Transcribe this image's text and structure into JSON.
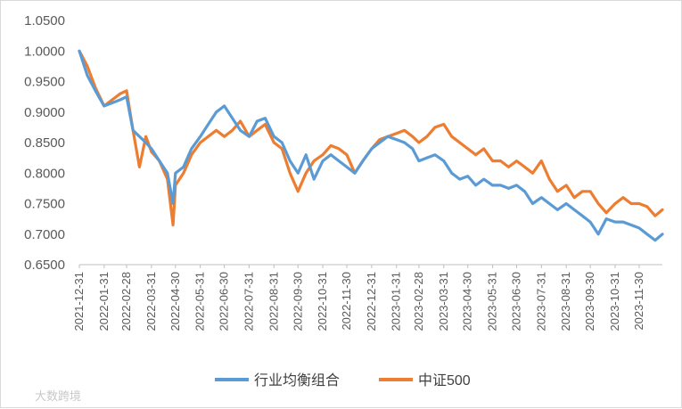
{
  "chart_data": {
    "type": "line",
    "title": "",
    "xlabel": "",
    "ylabel": "",
    "ylim": [
      0.65,
      1.05
    ],
    "y_ticks": [
      "1.0500",
      "1.0000",
      "0.9500",
      "0.9000",
      "0.8500",
      "0.8000",
      "0.7500",
      "0.7000",
      "0.6500"
    ],
    "y_tick_values": [
      1.05,
      1.0,
      0.95,
      0.9,
      0.85,
      0.8,
      0.75,
      0.7,
      0.65
    ],
    "x_ticks": [
      "2021-12-31",
      "2022-01-31",
      "2022-02-28",
      "2022-03-31",
      "2022-04-30",
      "2022-05-31",
      "2022-06-30",
      "2022-07-31",
      "2022-08-31",
      "2022-09-30",
      "2022-10-31",
      "2022-11-30",
      "2022-12-31",
      "2023-01-31",
      "2023-02-28",
      "2023-03-31",
      "2023-04-30",
      "2023-05-31",
      "2023-06-30",
      "2023-07-31",
      "2023-08-31",
      "2023-09-30",
      "2023-10-31",
      "2023-11-30"
    ],
    "x_range": [
      "2021-12-31",
      "2023-12-29"
    ],
    "grid": false,
    "legend_position": "bottom",
    "series": [
      {
        "name": "行业均衡组合",
        "color": "#5B9BD5",
        "x": [
          "2021-12-31",
          "2022-01-10",
          "2022-01-20",
          "2022-01-31",
          "2022-02-10",
          "2022-02-20",
          "2022-02-28",
          "2022-03-08",
          "2022-03-16",
          "2022-03-24",
          "2022-03-31",
          "2022-04-10",
          "2022-04-20",
          "2022-04-27",
          "2022-04-30",
          "2022-05-10",
          "2022-05-20",
          "2022-05-31",
          "2022-06-10",
          "2022-06-20",
          "2022-06-30",
          "2022-07-10",
          "2022-07-20",
          "2022-07-31",
          "2022-08-10",
          "2022-08-20",
          "2022-08-31",
          "2022-09-10",
          "2022-09-20",
          "2022-09-30",
          "2022-10-10",
          "2022-10-20",
          "2022-10-31",
          "2022-11-10",
          "2022-11-20",
          "2022-11-30",
          "2022-12-10",
          "2022-12-20",
          "2022-12-31",
          "2023-01-10",
          "2023-01-20",
          "2023-01-31",
          "2023-02-10",
          "2023-02-20",
          "2023-02-28",
          "2023-03-10",
          "2023-03-20",
          "2023-03-31",
          "2023-04-10",
          "2023-04-20",
          "2023-04-30",
          "2023-05-10",
          "2023-05-20",
          "2023-05-31",
          "2023-06-10",
          "2023-06-20",
          "2023-06-30",
          "2023-07-10",
          "2023-07-20",
          "2023-07-31",
          "2023-08-10",
          "2023-08-20",
          "2023-08-31",
          "2023-09-10",
          "2023-09-20",
          "2023-09-30",
          "2023-10-10",
          "2023-10-20",
          "2023-10-31",
          "2023-11-10",
          "2023-11-20",
          "2023-11-30",
          "2023-12-10",
          "2023-12-20",
          "2023-12-29"
        ],
        "values": [
          1.0,
          0.96,
          0.935,
          0.91,
          0.915,
          0.92,
          0.925,
          0.87,
          0.86,
          0.85,
          0.84,
          0.82,
          0.8,
          0.75,
          0.8,
          0.81,
          0.84,
          0.86,
          0.88,
          0.9,
          0.91,
          0.89,
          0.87,
          0.86,
          0.885,
          0.89,
          0.86,
          0.85,
          0.82,
          0.8,
          0.83,
          0.79,
          0.82,
          0.83,
          0.82,
          0.81,
          0.8,
          0.82,
          0.84,
          0.85,
          0.86,
          0.855,
          0.85,
          0.84,
          0.82,
          0.825,
          0.83,
          0.82,
          0.8,
          0.79,
          0.795,
          0.78,
          0.79,
          0.78,
          0.78,
          0.775,
          0.78,
          0.77,
          0.75,
          0.76,
          0.75,
          0.74,
          0.75,
          0.74,
          0.73,
          0.72,
          0.7,
          0.725,
          0.72,
          0.72,
          0.715,
          0.71,
          0.7,
          0.69,
          0.7
        ]
      },
      {
        "name": "中证500",
        "color": "#ED7D31",
        "x": [
          "2021-12-31",
          "2022-01-10",
          "2022-01-20",
          "2022-01-31",
          "2022-02-10",
          "2022-02-20",
          "2022-02-28",
          "2022-03-08",
          "2022-03-16",
          "2022-03-24",
          "2022-03-31",
          "2022-04-10",
          "2022-04-20",
          "2022-04-27",
          "2022-04-30",
          "2022-05-10",
          "2022-05-20",
          "2022-05-31",
          "2022-06-10",
          "2022-06-20",
          "2022-06-30",
          "2022-07-10",
          "2022-07-20",
          "2022-07-31",
          "2022-08-10",
          "2022-08-20",
          "2022-08-31",
          "2022-09-10",
          "2022-09-20",
          "2022-09-30",
          "2022-10-10",
          "2022-10-20",
          "2022-10-31",
          "2022-11-10",
          "2022-11-20",
          "2022-11-30",
          "2022-12-10",
          "2022-12-20",
          "2022-12-31",
          "2023-01-10",
          "2023-01-20",
          "2023-01-31",
          "2023-02-10",
          "2023-02-20",
          "2023-02-28",
          "2023-03-10",
          "2023-03-20",
          "2023-03-31",
          "2023-04-10",
          "2023-04-20",
          "2023-04-30",
          "2023-05-10",
          "2023-05-20",
          "2023-05-31",
          "2023-06-10",
          "2023-06-20",
          "2023-06-30",
          "2023-07-10",
          "2023-07-20",
          "2023-07-31",
          "2023-08-10",
          "2023-08-20",
          "2023-08-31",
          "2023-09-10",
          "2023-09-20",
          "2023-09-30",
          "2023-10-10",
          "2023-10-20",
          "2023-10-31",
          "2023-11-10",
          "2023-11-20",
          "2023-11-30",
          "2023-12-10",
          "2023-12-20",
          "2023-12-29"
        ],
        "values": [
          1.0,
          0.975,
          0.94,
          0.91,
          0.92,
          0.93,
          0.935,
          0.87,
          0.81,
          0.86,
          0.835,
          0.82,
          0.79,
          0.715,
          0.78,
          0.8,
          0.83,
          0.85,
          0.86,
          0.87,
          0.86,
          0.87,
          0.885,
          0.86,
          0.87,
          0.88,
          0.85,
          0.84,
          0.8,
          0.77,
          0.8,
          0.82,
          0.83,
          0.845,
          0.84,
          0.83,
          0.8,
          0.82,
          0.84,
          0.855,
          0.86,
          0.865,
          0.87,
          0.86,
          0.85,
          0.86,
          0.875,
          0.88,
          0.86,
          0.85,
          0.84,
          0.83,
          0.84,
          0.82,
          0.82,
          0.81,
          0.82,
          0.81,
          0.8,
          0.82,
          0.79,
          0.77,
          0.78,
          0.76,
          0.77,
          0.77,
          0.75,
          0.735,
          0.75,
          0.76,
          0.75,
          0.75,
          0.745,
          0.73,
          0.74
        ]
      }
    ]
  },
  "watermark": "大数跨境"
}
